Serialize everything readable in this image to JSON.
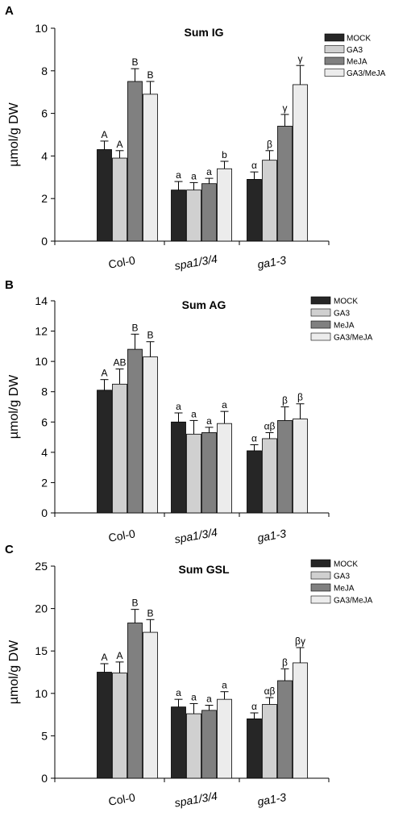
{
  "colors": {
    "MOCK": "#262626",
    "GA3": "#d0d0d0",
    "MeJA": "#808080",
    "GA3/MeJA": "#ececec",
    "axis": "#000000"
  },
  "chart_data": [
    {
      "type": "bar",
      "panel": "A",
      "title": "Sum IG",
      "ylabel": "µmol/g DW",
      "ylim": [
        0,
        10
      ],
      "yticks": [
        0,
        2,
        4,
        6,
        8,
        10
      ],
      "categories": [
        "Col-0",
        "spa1/3/4",
        "ga1-3"
      ],
      "legend_position": "top-right",
      "series": [
        {
          "name": "MOCK",
          "values": [
            4.3,
            2.4,
            2.9
          ],
          "errors": [
            0.4,
            0.4,
            0.35
          ],
          "labels": [
            "A",
            "a",
            "α"
          ]
        },
        {
          "name": "GA3",
          "values": [
            3.9,
            2.4,
            3.8
          ],
          "errors": [
            0.35,
            0.35,
            0.45
          ],
          "labels": [
            "A",
            "a",
            "β"
          ]
        },
        {
          "name": "MeJA",
          "values": [
            7.5,
            2.7,
            5.4
          ],
          "errors": [
            0.6,
            0.25,
            0.55
          ],
          "labels": [
            "B",
            "a",
            "γ"
          ]
        },
        {
          "name": "GA3/MeJA",
          "values": [
            6.9,
            3.4,
            7.35
          ],
          "errors": [
            0.6,
            0.35,
            0.9
          ],
          "labels": [
            "B",
            "b",
            "γ"
          ]
        }
      ]
    },
    {
      "type": "bar",
      "panel": "B",
      "title": "Sum AG",
      "ylabel": "µmol/g DW",
      "ylim": [
        0,
        14
      ],
      "yticks": [
        0,
        2,
        4,
        6,
        8,
        10,
        12,
        14
      ],
      "categories": [
        "Col-0",
        "spa1/3/4",
        "ga1-3"
      ],
      "legend_position": "top-right",
      "series": [
        {
          "name": "MOCK",
          "values": [
            8.1,
            6.0,
            4.1
          ],
          "errors": [
            0.7,
            0.6,
            0.4
          ],
          "labels": [
            "A",
            "a",
            "α"
          ]
        },
        {
          "name": "GA3",
          "values": [
            8.5,
            5.2,
            4.9
          ],
          "errors": [
            1.0,
            0.9,
            0.4
          ],
          "labels": [
            "AB",
            "a",
            "αβ"
          ]
        },
        {
          "name": "MeJA",
          "values": [
            10.8,
            5.3,
            6.1
          ],
          "errors": [
            1.0,
            0.35,
            0.9
          ],
          "labels": [
            "B",
            "a",
            "β"
          ]
        },
        {
          "name": "GA3/MeJA",
          "values": [
            10.3,
            5.9,
            6.2
          ],
          "errors": [
            1.0,
            0.8,
            1.0
          ],
          "labels": [
            "B",
            "a",
            "β"
          ]
        }
      ]
    },
    {
      "type": "bar",
      "panel": "C",
      "title": "Sum GSL",
      "ylabel": "µmol/g DW",
      "ylim": [
        0,
        25
      ],
      "yticks": [
        0,
        5,
        10,
        15,
        20,
        25
      ],
      "categories": [
        "Col-0",
        "spa1/3/4",
        "ga1-3"
      ],
      "legend_position": "top-right",
      "series": [
        {
          "name": "MOCK",
          "values": [
            12.5,
            8.4,
            7.0
          ],
          "errors": [
            1.0,
            0.9,
            0.7
          ],
          "labels": [
            "A",
            "a",
            "α"
          ]
        },
        {
          "name": "GA3",
          "values": [
            12.4,
            7.6,
            8.7
          ],
          "errors": [
            1.3,
            1.2,
            0.8
          ],
          "labels": [
            "A",
            "a",
            "αβ"
          ]
        },
        {
          "name": "MeJA",
          "values": [
            18.3,
            8.0,
            11.5
          ],
          "errors": [
            1.6,
            0.6,
            1.4
          ],
          "labels": [
            "B",
            "a",
            "β"
          ]
        },
        {
          "name": "GA3/MeJA",
          "values": [
            17.2,
            9.3,
            13.6
          ],
          "errors": [
            1.5,
            0.9,
            1.8
          ],
          "labels": [
            "B",
            "a",
            "βγ"
          ]
        }
      ]
    }
  ]
}
